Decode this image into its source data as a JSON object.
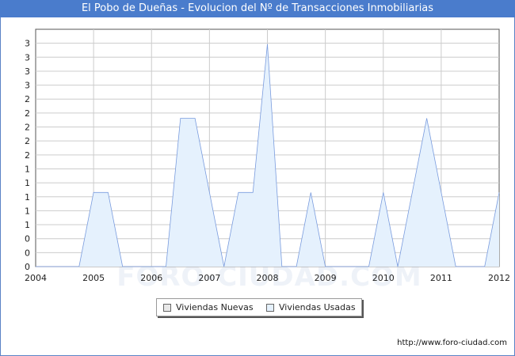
{
  "title": "El Pobo de Dueñas - Evolucion del Nº de Transacciones Inmobiliarias",
  "watermark": "FORO-CIUDAD.COM",
  "source_url": "http://www.foro-ciudad.com",
  "colors": {
    "title_bar": "#4a7ccc",
    "frame_border": "#5b83c6",
    "grid": "#cccccc",
    "series_nuevas_fill": "#e8e8e8",
    "series_usadas_fill": "#e5f1fd",
    "series_usadas_line": "#7a9cde"
  },
  "chart_data": {
    "type": "area",
    "title": "El Pobo de Dueñas - Evolucion del Nº de Transacciones Inmobiliarias",
    "xlabel": "",
    "ylabel": "",
    "x_ticks": [
      "2004",
      "2005",
      "2006",
      "2007",
      "2008",
      "2009",
      "2010",
      "2011",
      "2012"
    ],
    "y_ticks": [
      "0",
      "0",
      "0",
      "1",
      "1",
      "1",
      "1",
      "1",
      "2",
      "2",
      "2",
      "2",
      "2",
      "3",
      "3",
      "3",
      "3"
    ],
    "xlim": [
      2004,
      2012
    ],
    "ylim": [
      0,
      3.2
    ],
    "grid": true,
    "legend_position": "bottom-center",
    "series": [
      {
        "name": "Viviendas Nuevas",
        "x": [
          2004,
          2012
        ],
        "values": [
          0,
          0
        ]
      },
      {
        "name": "Viviendas Usadas",
        "x": [
          2004,
          2004.75,
          2005,
          2005.25,
          2005.5,
          2006,
          2006.25,
          2006.5,
          2006.75,
          2007,
          2007.25,
          2007.5,
          2007.75,
          2008,
          2008.25,
          2008.5,
          2008.75,
          2009,
          2009.25,
          2009.5,
          2009.75,
          2010,
          2010.25,
          2010.5,
          2010.75,
          2011,
          2011.25,
          2011.5,
          2011.75,
          2012
        ],
        "values": [
          0,
          0,
          1,
          1,
          0,
          0,
          0,
          2,
          2,
          1,
          0,
          1,
          1,
          3,
          0,
          0,
          1,
          0,
          0,
          0,
          0,
          1,
          0,
          1,
          2,
          1,
          0,
          0,
          0,
          1
        ]
      }
    ]
  },
  "legend": {
    "items": [
      {
        "label": "Viviendas Nuevas",
        "color": "#e8e8e8"
      },
      {
        "label": "Viviendas Usadas",
        "color": "#e5f1fd"
      }
    ]
  }
}
